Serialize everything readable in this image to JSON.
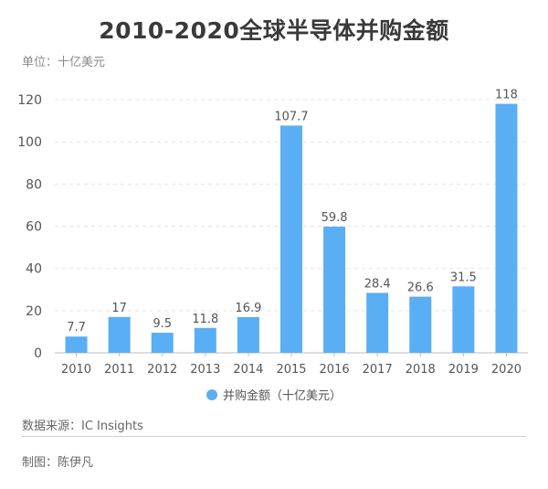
{
  "page": {
    "title": "2010-2020全球半导体并购金额",
    "unit": "单位：十亿美元",
    "source": "数据来源：IC Insights",
    "credit": "制图：陈伊凡"
  },
  "colors": {
    "bar": "#5aaef4",
    "grid": "#e4e4e4",
    "axis": "#bdbdbd",
    "text": "#555555"
  },
  "chart_data": {
    "type": "bar",
    "title": "2010-2020全球半导体并购金额",
    "xlabel": "",
    "ylabel": "单位：十亿美元",
    "categories": [
      "2010",
      "2011",
      "2012",
      "2013",
      "2014",
      "2015",
      "2016",
      "2017",
      "2018",
      "2019",
      "2020"
    ],
    "series": [
      {
        "name": "并购金额（十亿美元）",
        "values": [
          7.7,
          17,
          9.5,
          11.8,
          16.9,
          107.7,
          59.8,
          28.4,
          26.6,
          31.5,
          118
        ],
        "labels": [
          "7.7",
          "17",
          "9.5",
          "11.8",
          "16.9",
          "107.7",
          "59.8",
          "28.4",
          "26.6",
          "31.5",
          "118"
        ]
      }
    ],
    "ylim": [
      0,
      120
    ],
    "yticks": [
      0,
      20,
      40,
      60,
      80,
      100,
      120
    ],
    "grid": true,
    "legend": "bottom-center"
  }
}
